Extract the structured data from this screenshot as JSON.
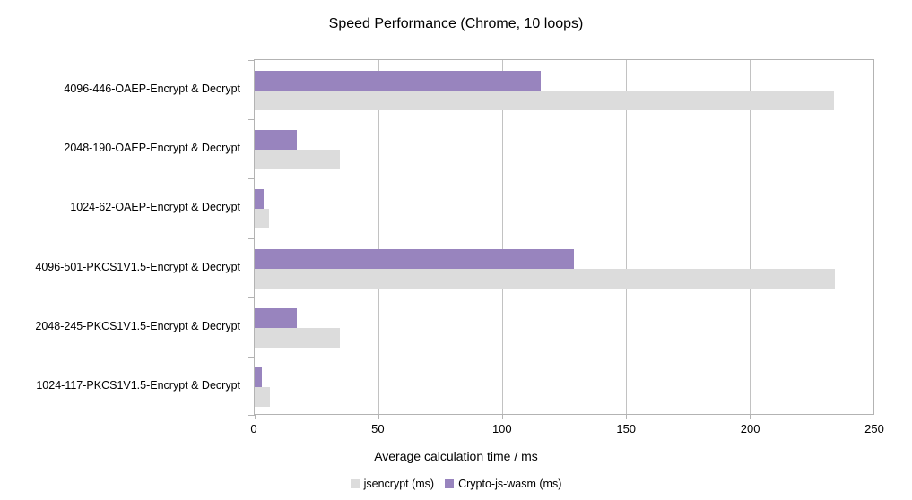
{
  "chart_data": {
    "type": "bar",
    "orientation": "horizontal",
    "title": "Speed Performance (Chrome, 10 loops)",
    "xlabel": "Average calculation time / ms",
    "ylabel": "",
    "xlim": [
      0,
      250
    ],
    "xticks": [
      0,
      50,
      100,
      150,
      200,
      250
    ],
    "grid": true,
    "legend_position": "bottom",
    "categories": [
      "4096-446-OAEP-Encrypt & Decrypt",
      "2048-190-OAEP-Encrypt & Decrypt",
      "1024-62-OAEP-Encrypt & Decrypt",
      "4096-501-PKCS1V1.5-Encrypt & Decrypt",
      "2048-245-PKCS1V1.5-Encrypt & Decrypt",
      "1024-117-PKCS1V1.5-Encrypt & Decrypt"
    ],
    "series": [
      {
        "name": "jsencrypt (ms)",
        "color": "#dcdcdc",
        "values": [
          234,
          34.5,
          5.7,
          234.5,
          34.5,
          6
        ]
      },
      {
        "name": "Crypto-js-wasm (ms)",
        "color": "#9884be",
        "values": [
          115.5,
          17,
          3.7,
          129,
          17,
          3
        ]
      }
    ]
  },
  "colors": {
    "background": "#ffffff",
    "axis": "#b3b3b3",
    "gridline": "#c2c2c2",
    "text": "#000000"
  }
}
